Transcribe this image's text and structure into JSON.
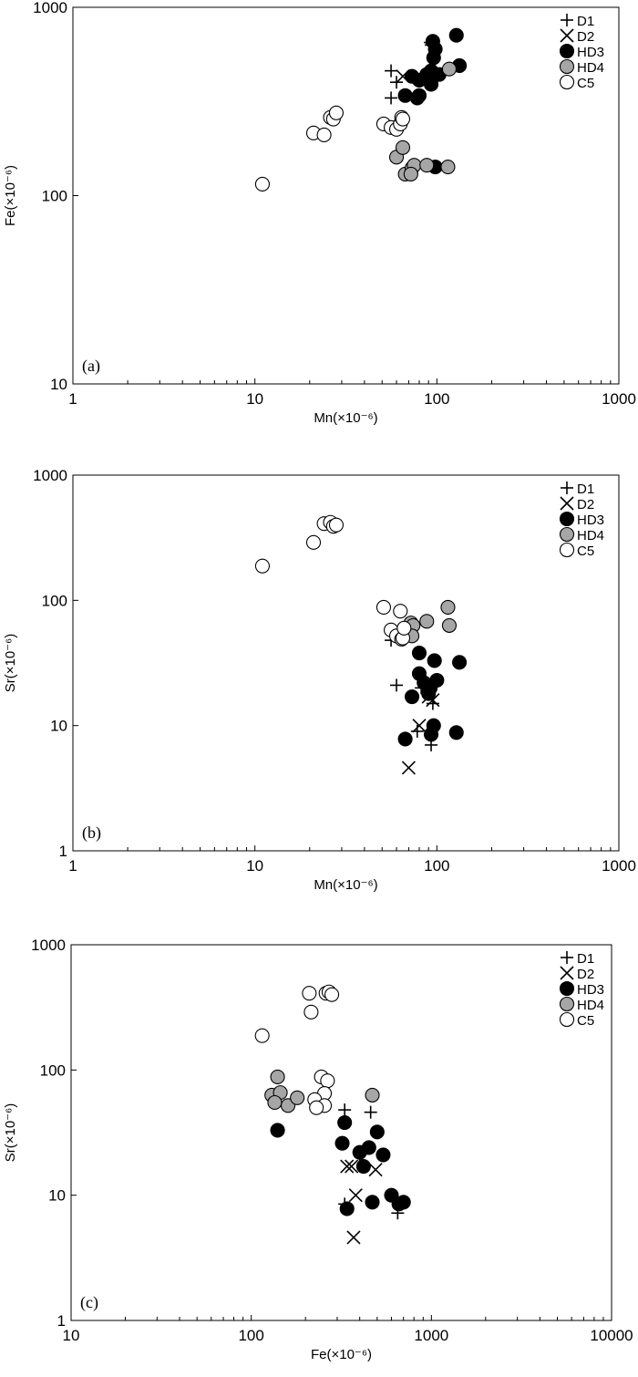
{
  "chart_data": [
    {
      "type": "scatter",
      "panel_label": "(a)",
      "xlabel": "Mn(×10⁻⁶)",
      "ylabel": "Fe(×10⁻⁶)",
      "xscale": "log",
      "yscale": "log",
      "xlim": [
        1,
        1000
      ],
      "ylim": [
        10,
        1000
      ],
      "xticks": [
        "1",
        "10",
        "100",
        "1000"
      ],
      "yticks": [
        "10",
        "100",
        "1000"
      ],
      "grid": false,
      "legend_position": "top-right",
      "series": [
        {
          "name": "D1",
          "marker": "plus",
          "points": [
            [
              56,
              460
            ],
            [
              60,
              400
            ],
            [
              56,
              330
            ],
            [
              92,
              650
            ],
            [
              93,
              630
            ]
          ]
        },
        {
          "name": "D2",
          "marker": "x",
          "points": [
            [
              65,
              430
            ]
          ]
        },
        {
          "name": "HD3",
          "marker": "filled",
          "color": "#000000",
          "points": [
            [
              73,
              430
            ],
            [
              80,
              410
            ],
            [
              88,
              440
            ],
            [
              93,
              460
            ],
            [
              96,
              540
            ],
            [
              98,
              600
            ],
            [
              95,
              660
            ],
            [
              103,
              440
            ],
            [
              128,
              710
            ],
            [
              133,
              490
            ],
            [
              78,
              330
            ],
            [
              80,
              340
            ],
            [
              67,
              340
            ],
            [
              93,
              390
            ],
            [
              98,
              142
            ]
          ]
        },
        {
          "name": "HD4",
          "marker": "filled",
          "color": "#a6a6a6",
          "points": [
            [
              60,
              160
            ],
            [
              65,
              180
            ],
            [
              67,
              130
            ],
            [
              73,
              140
            ],
            [
              75,
              145
            ],
            [
              72,
              130
            ],
            [
              88,
              145
            ],
            [
              115,
              142
            ],
            [
              117,
              470
            ]
          ]
        },
        {
          "name": "C5",
          "marker": "open",
          "color": "#ffffff",
          "points": [
            [
              11,
              115
            ],
            [
              21,
              215
            ],
            [
              24,
              210
            ],
            [
              26,
              260
            ],
            [
              27,
              255
            ],
            [
              28,
              275
            ],
            [
              51,
              240
            ],
            [
              56,
              230
            ],
            [
              60,
              225
            ],
            [
              63,
              240
            ],
            [
              64,
              260
            ],
            [
              65,
              255
            ]
          ]
        }
      ]
    },
    {
      "type": "scatter",
      "panel_label": "(b)",
      "xlabel": "Mn(×10⁻⁶)",
      "ylabel": "Sr(×10⁻⁶)",
      "xscale": "log",
      "yscale": "log",
      "xlim": [
        1,
        1000
      ],
      "ylim": [
        1,
        1000
      ],
      "xticks": [
        "1",
        "10",
        "100",
        "1000"
      ],
      "yticks": [
        "1",
        "10",
        "100",
        "1000"
      ],
      "grid": false,
      "legend_position": "top-right",
      "series": [
        {
          "name": "D1",
          "marker": "plus",
          "points": [
            [
              56,
              48
            ],
            [
              60,
              21
            ],
            [
              78,
              9
            ],
            [
              82,
              20
            ],
            [
              93,
              7
            ],
            [
              95,
              15
            ]
          ]
        },
        {
          "name": "D2",
          "marker": "x",
          "points": [
            [
              70,
              4.6
            ],
            [
              80,
              10
            ],
            [
              90,
              17
            ],
            [
              95,
              16
            ]
          ]
        },
        {
          "name": "HD3",
          "marker": "filled",
          "color": "#000000",
          "points": [
            [
              80,
              38
            ],
            [
              80,
              26
            ],
            [
              85,
              22
            ],
            [
              73,
              17
            ],
            [
              90,
              18
            ],
            [
              92,
              20
            ],
            [
              97,
              33
            ],
            [
              100,
              23
            ],
            [
              133,
              32
            ],
            [
              67,
              7.8
            ],
            [
              93,
              8.5
            ],
            [
              96,
              10
            ],
            [
              128,
              8.8
            ]
          ]
        },
        {
          "name": "HD4",
          "marker": "filled",
          "color": "#a6a6a6",
          "points": [
            [
              70,
              57
            ],
            [
              72,
              66
            ],
            [
              74,
              63
            ],
            [
              73,
              52
            ],
            [
              88,
              68
            ],
            [
              115,
              88
            ],
            [
              117,
              63
            ]
          ]
        },
        {
          "name": "C5",
          "marker": "open",
          "color": "#ffffff",
          "points": [
            [
              11,
              188
            ],
            [
              21,
              290
            ],
            [
              24,
              410
            ],
            [
              26,
              420
            ],
            [
              27,
              390
            ],
            [
              28,
              400
            ],
            [
              51,
              88
            ],
            [
              56,
              58
            ],
            [
              60,
              52
            ],
            [
              63,
              82
            ],
            [
              64,
              49
            ],
            [
              65,
              50
            ],
            [
              66,
              60
            ]
          ]
        }
      ]
    },
    {
      "type": "scatter",
      "panel_label": "(c)",
      "xlabel": "Fe(×10⁻⁶)",
      "ylabel": "Sr(×10⁻⁶)",
      "xscale": "log",
      "yscale": "log",
      "xlim": [
        10,
        10000
      ],
      "ylim": [
        1,
        1000
      ],
      "xticks": [
        "10",
        "100",
        "1000",
        "10000"
      ],
      "yticks": [
        "1",
        "10",
        "100",
        "1000"
      ],
      "grid": false,
      "legend_position": "top-right",
      "series": [
        {
          "name": "D1",
          "marker": "plus",
          "points": [
            [
              330,
              48
            ],
            [
              460,
              46
            ],
            [
              330,
              8.5
            ],
            [
              650,
              7.2
            ],
            [
              400,
              21
            ]
          ]
        },
        {
          "name": "D2",
          "marker": "x",
          "points": [
            [
              340,
              17
            ],
            [
              360,
              17
            ],
            [
              380,
              10
            ],
            [
              370,
              4.6
            ],
            [
              490,
              16
            ]
          ]
        },
        {
          "name": "HD3",
          "marker": "filled",
          "color": "#000000",
          "points": [
            [
              140,
              33
            ],
            [
              330,
              38
            ],
            [
              320,
              26
            ],
            [
              400,
              22
            ],
            [
              420,
              17
            ],
            [
              450,
              24
            ],
            [
              500,
              32
            ],
            [
              540,
              21
            ],
            [
              340,
              7.8
            ],
            [
              470,
              8.8
            ],
            [
              600,
              10
            ],
            [
              660,
              8.5
            ],
            [
              700,
              8.8
            ]
          ]
        },
        {
          "name": "HD4",
          "marker": "filled",
          "color": "#a6a6a6",
          "points": [
            [
              130,
              63
            ],
            [
              140,
              88
            ],
            [
              145,
              66
            ],
            [
              160,
              52
            ],
            [
              180,
              60
            ],
            [
              135,
              55
            ],
            [
              470,
              63
            ]
          ]
        },
        {
          "name": "C5",
          "marker": "open",
          "color": "#ffffff",
          "points": [
            [
              115,
              188
            ],
            [
              210,
              410
            ],
            [
              215,
              290
            ],
            [
              245,
              88
            ],
            [
              265,
              82
            ],
            [
              255,
              65
            ],
            [
              225,
              58
            ],
            [
              255,
              52
            ],
            [
              230,
              50
            ],
            [
              260,
              410
            ],
            [
              270,
              420
            ],
            [
              280,
              400
            ]
          ]
        }
      ]
    }
  ]
}
